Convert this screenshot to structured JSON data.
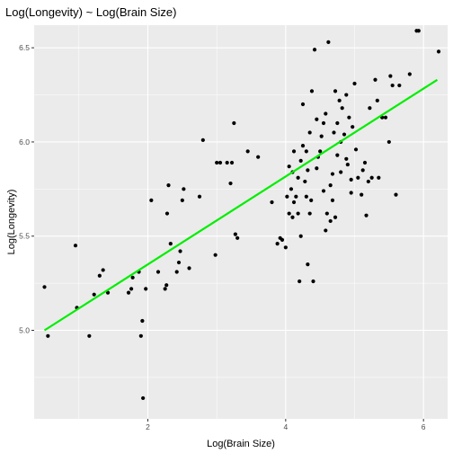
{
  "chart_data": {
    "type": "scatter",
    "title": "Log(Longevity) ~ Log(Brain Size)",
    "xlabel": "Log(Brain Size)",
    "ylabel": "Log(Longevity)",
    "xlim": [
      0.35,
      6.35
    ],
    "ylim": [
      4.53,
      6.62
    ],
    "x_ticks": [
      2,
      4,
      6
    ],
    "x_tick_labels": [
      "2",
      "4",
      "6"
    ],
    "y_ticks": [
      5.0,
      5.5,
      6.0,
      6.5
    ],
    "y_tick_labels": [
      "5.0",
      "5.5",
      "6.0",
      "6.5"
    ],
    "grid": true,
    "panel_background": "#ebebeb",
    "point_color": "#000000",
    "fit_color": "#00ee00",
    "fit_line": {
      "x": [
        0.5,
        6.2
      ],
      "y": [
        5.0,
        6.33
      ]
    },
    "points": [
      [
        0.5,
        5.23
      ],
      [
        0.55,
        4.97
      ],
      [
        0.95,
        5.45
      ],
      [
        0.97,
        5.12
      ],
      [
        1.15,
        4.97
      ],
      [
        1.22,
        5.19
      ],
      [
        1.3,
        5.29
      ],
      [
        1.35,
        5.32
      ],
      [
        1.42,
        5.2
      ],
      [
        1.72,
        5.2
      ],
      [
        1.76,
        5.22
      ],
      [
        1.78,
        5.28
      ],
      [
        1.87,
        5.31
      ],
      [
        1.9,
        4.97
      ],
      [
        1.92,
        5.05
      ],
      [
        1.93,
        4.64
      ],
      [
        1.97,
        5.22
      ],
      [
        2.05,
        5.69
      ],
      [
        2.15,
        5.31
      ],
      [
        2.25,
        5.22
      ],
      [
        2.27,
        5.24
      ],
      [
        2.28,
        5.62
      ],
      [
        2.3,
        5.77
      ],
      [
        2.33,
        5.46
      ],
      [
        2.42,
        5.31
      ],
      [
        2.45,
        5.36
      ],
      [
        2.47,
        5.42
      ],
      [
        2.5,
        5.69
      ],
      [
        2.52,
        5.75
      ],
      [
        2.6,
        5.33
      ],
      [
        2.75,
        5.71
      ],
      [
        2.8,
        6.01
      ],
      [
        2.98,
        5.4
      ],
      [
        3.0,
        5.89
      ],
      [
        3.05,
        5.89
      ],
      [
        3.15,
        5.89
      ],
      [
        3.2,
        5.78
      ],
      [
        3.22,
        5.89
      ],
      [
        3.25,
        6.1
      ],
      [
        3.27,
        5.51
      ],
      [
        3.3,
        5.49
      ],
      [
        3.45,
        5.95
      ],
      [
        3.6,
        5.92
      ],
      [
        3.8,
        5.68
      ],
      [
        3.88,
        5.46
      ],
      [
        3.92,
        5.49
      ],
      [
        3.95,
        5.48
      ],
      [
        4.0,
        5.44
      ],
      [
        4.02,
        5.71
      ],
      [
        4.05,
        5.62
      ],
      [
        4.08,
        5.75
      ],
      [
        4.1,
        5.84
      ],
      [
        4.12,
        5.68
      ],
      [
        4.15,
        5.71
      ],
      [
        4.18,
        5.62
      ],
      [
        4.2,
        5.26
      ],
      [
        4.22,
        5.9
      ],
      [
        4.25,
        5.98
      ],
      [
        4.28,
        5.79
      ],
      [
        4.3,
        5.71
      ],
      [
        4.32,
        5.85
      ],
      [
        4.35,
        5.62
      ],
      [
        4.37,
        5.69
      ],
      [
        4.4,
        5.26
      ],
      [
        4.42,
        6.49
      ],
      [
        4.45,
        5.86
      ],
      [
        4.47,
        5.92
      ],
      [
        4.5,
        5.95
      ],
      [
        4.52,
        6.03
      ],
      [
        4.55,
        6.1
      ],
      [
        4.58,
        6.15
      ],
      [
        4.6,
        5.62
      ],
      [
        4.62,
        6.53
      ],
      [
        4.65,
        5.77
      ],
      [
        4.68,
        5.69
      ],
      [
        4.7,
        6.05
      ],
      [
        4.72,
        6.27
      ],
      [
        4.75,
        5.93
      ],
      [
        4.78,
        6.22
      ],
      [
        4.8,
        5.84
      ],
      [
        4.82,
        6.18
      ],
      [
        4.85,
        6.04
      ],
      [
        4.88,
        5.91
      ],
      [
        4.9,
        5.88
      ],
      [
        4.92,
        6.13
      ],
      [
        4.95,
        5.8
      ],
      [
        4.97,
        6.08
      ],
      [
        5.0,
        6.31
      ],
      [
        5.02,
        5.96
      ],
      [
        5.05,
        5.81
      ],
      [
        5.1,
        5.72
      ],
      [
        5.12,
        5.85
      ],
      [
        5.15,
        5.89
      ],
      [
        5.17,
        5.61
      ],
      [
        5.2,
        5.79
      ],
      [
        5.22,
        6.18
      ],
      [
        5.25,
        5.81
      ],
      [
        5.3,
        6.33
      ],
      [
        5.33,
        6.22
      ],
      [
        5.35,
        5.81
      ],
      [
        5.4,
        6.13
      ],
      [
        5.45,
        6.13
      ],
      [
        5.5,
        6.0
      ],
      [
        5.52,
        6.35
      ],
      [
        5.55,
        6.3
      ],
      [
        5.6,
        5.72
      ],
      [
        5.65,
        6.3
      ],
      [
        5.8,
        6.36
      ],
      [
        5.9,
        6.59
      ],
      [
        5.93,
        6.59
      ],
      [
        6.22,
        6.48
      ],
      [
        4.05,
        5.87
      ],
      [
        4.12,
        5.95
      ],
      [
        4.18,
        5.81
      ],
      [
        4.25,
        6.2
      ],
      [
        4.35,
        6.05
      ],
      [
        4.45,
        6.12
      ],
      [
        4.58,
        5.53
      ],
      [
        4.65,
        5.58
      ],
      [
        4.72,
        5.6
      ],
      [
        4.8,
        6.0
      ],
      [
        4.88,
        6.25
      ],
      [
        4.95,
        5.73
      ],
      [
        4.22,
        5.5
      ],
      [
        4.1,
        5.6
      ],
      [
        4.3,
        5.95
      ],
      [
        4.55,
        5.74
      ],
      [
        4.68,
        5.83
      ],
      [
        4.75,
        6.1
      ],
      [
        4.38,
        6.27
      ],
      [
        4.32,
        5.35
      ]
    ]
  }
}
